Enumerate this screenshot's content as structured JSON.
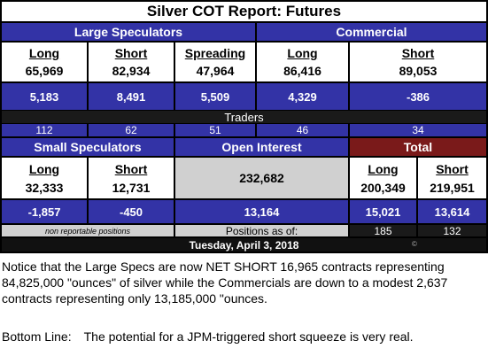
{
  "title": "Silver  COT Report: Futures",
  "large_spec": {
    "header": "Large Speculators",
    "long_label": "Long",
    "long": "65,969",
    "long_chg": "5,183",
    "short_label": "Short",
    "short": "82,934",
    "short_chg": "8,491",
    "spread_label": "Spreading",
    "spread": "47,964",
    "spread_chg": "5,509"
  },
  "commercial": {
    "header": "Commercial",
    "long_label": "Long",
    "long": "86,416",
    "long_chg": "4,329",
    "short_label": "Short",
    "short": "89,053",
    "short_chg": "-386"
  },
  "traders": {
    "label": "Traders",
    "values": [
      "112",
      "62",
      "51",
      "46",
      "34"
    ]
  },
  "small_spec": {
    "header": "Small Speculators",
    "long_label": "Long",
    "long": "32,333",
    "long_chg": "-1,857",
    "short_label": "Short",
    "short": "12,731",
    "short_chg": "-450",
    "footnote": "non reportable positions"
  },
  "open_interest": {
    "header": "Open Interest",
    "value": "232,682",
    "chg": "13,164",
    "positions_as_of": "Positions as of:"
  },
  "total": {
    "header": "Total",
    "long_label": "Long",
    "long": "200,349",
    "long_chg": "15,021",
    "short_label": "Short",
    "short": "219,951",
    "short_chg": "13,614",
    "traders_long": "185",
    "traders_short": "132"
  },
  "date": "Tuesday, April 3, 2018",
  "copyright": "©",
  "note_paragraph": "Notice that the Large Specs are now NET SHORT 16,965 contracts representing 84,825,000 \"ounces\" of silver while the Commercials are down to a modest 2,637 contracts representing only 13,185,000 \"ounces.",
  "bottom_line_label": "Bottom Line:",
  "bottom_line_text": "The potential for a JPM-triggered short squeeze is very real."
}
